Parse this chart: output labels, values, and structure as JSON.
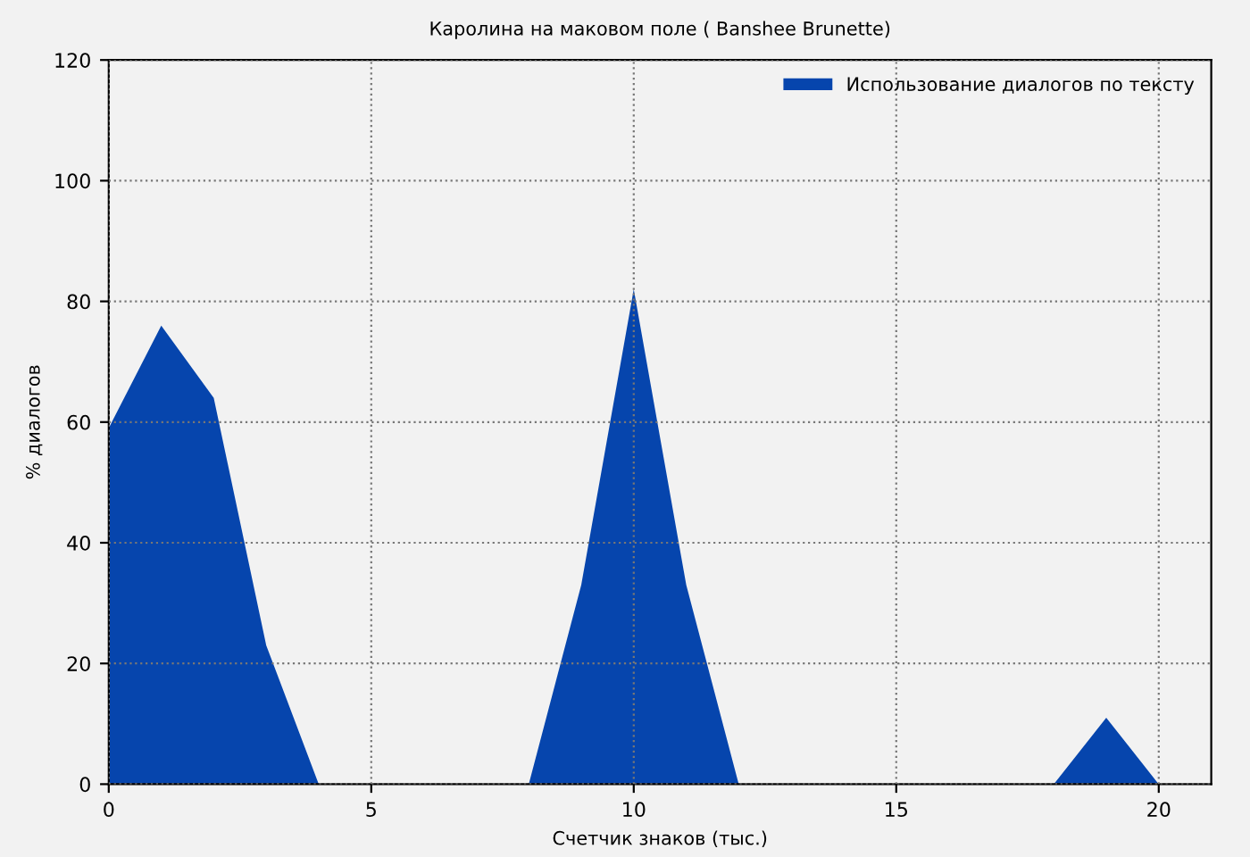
{
  "chart_data": {
    "type": "area",
    "title": "Каролина на маковом поле ( Banshee Brunette)",
    "xlabel": "Счетчик знаков (тыс.)",
    "ylabel": "% диалогов",
    "x": [
      0,
      1,
      2,
      3,
      4,
      5,
      6,
      7,
      8,
      9,
      10,
      11,
      12,
      13,
      14,
      15,
      16,
      17,
      18,
      19,
      20
    ],
    "series": [
      {
        "name": "Использование диалогов по тексту",
        "color": "#0645ad",
        "values": [
          59,
          76,
          64,
          23,
          0,
          0,
          0,
          0,
          0,
          33,
          82,
          33,
          0,
          0,
          0,
          0,
          0,
          0,
          0,
          11,
          0
        ]
      }
    ],
    "xlim": [
      0,
      21
    ],
    "ylim": [
      0,
      120
    ],
    "xticks": [
      0,
      5,
      10,
      15,
      20
    ],
    "yticks": [
      0,
      20,
      40,
      60,
      80,
      100,
      120
    ],
    "grid": true,
    "legend": "top right"
  }
}
